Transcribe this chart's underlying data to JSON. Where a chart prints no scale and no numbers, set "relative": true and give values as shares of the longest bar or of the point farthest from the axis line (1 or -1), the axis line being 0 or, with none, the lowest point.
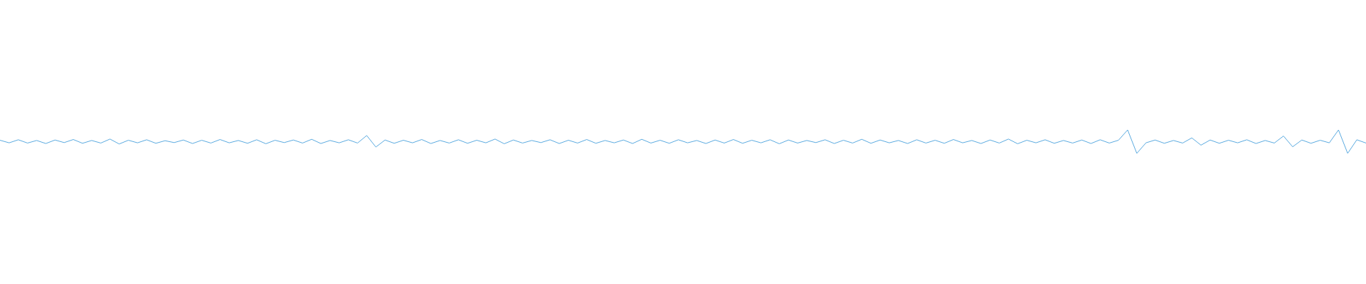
{
  "chart_data": {
    "type": "line",
    "relative": true,
    "color": "#5aaae0",
    "categories": [
      null,
      null,
      null,
      null,
      null,
      null,
      null,
      null,
      null,
      null,
      null,
      null,
      null,
      null,
      null,
      null,
      null,
      null,
      null,
      null,
      null,
      null,
      null,
      null,
      null,
      null,
      null,
      null,
      null,
      null,
      null,
      null,
      null,
      null,
      null,
      null,
      null,
      null,
      null,
      null,
      null,
      null,
      null,
      null,
      null,
      null,
      null,
      null,
      null,
      null,
      null,
      null,
      null,
      null,
      null,
      null,
      null,
      null,
      null,
      null,
      null,
      null,
      null,
      null,
      null,
      null,
      null,
      null,
      null,
      null,
      null,
      null,
      null,
      null,
      null,
      null,
      null,
      null,
      null,
      null,
      null,
      null,
      null,
      null,
      null,
      null,
      null,
      null,
      null,
      null,
      null,
      null,
      null,
      null,
      null,
      null,
      null,
      null,
      null,
      null,
      null,
      null,
      null,
      null,
      null,
      null,
      null,
      null,
      null,
      null,
      null,
      null,
      null,
      null,
      null,
      null,
      null,
      null,
      null,
      null,
      null,
      null,
      null,
      null,
      null,
      null,
      null,
      null,
      null,
      null,
      null,
      null,
      null,
      null,
      null,
      null,
      null,
      null,
      null,
      null,
      null,
      null,
      null,
      null,
      null,
      null,
      null,
      null,
      null,
      null
    ],
    "values": [
      0.56,
      0.45,
      0.58,
      0.44,
      0.55,
      0.42,
      0.57,
      0.46,
      0.59,
      0.43,
      0.55,
      0.44,
      0.61,
      0.4,
      0.56,
      0.45,
      0.58,
      0.43,
      0.54,
      0.46,
      0.57,
      0.42,
      0.56,
      0.44,
      0.59,
      0.45,
      0.55,
      0.43,
      0.58,
      0.41,
      0.56,
      0.46,
      0.57,
      0.44,
      0.6,
      0.42,
      0.55,
      0.45,
      0.58,
      0.44,
      0.76,
      0.27,
      0.57,
      0.43,
      0.56,
      0.45,
      0.59,
      0.42,
      0.55,
      0.44,
      0.58,
      0.43,
      0.56,
      0.45,
      0.61,
      0.41,
      0.57,
      0.44,
      0.55,
      0.46,
      0.58,
      0.42,
      0.56,
      0.44,
      0.59,
      0.43,
      0.55,
      0.45,
      0.57,
      0.42,
      0.6,
      0.44,
      0.56,
      0.43,
      0.58,
      0.45,
      0.55,
      0.42,
      0.57,
      0.44,
      0.59,
      0.43,
      0.56,
      0.45,
      0.58,
      0.41,
      0.57,
      0.44,
      0.55,
      0.46,
      0.58,
      0.42,
      0.56,
      0.44,
      0.6,
      0.43,
      0.57,
      0.45,
      0.55,
      0.42,
      0.58,
      0.44,
      0.56,
      0.43,
      0.59,
      0.45,
      0.55,
      0.42,
      0.57,
      0.44,
      0.61,
      0.41,
      0.56,
      0.45,
      0.58,
      0.43,
      0.55,
      0.44,
      0.57,
      0.42,
      0.58,
      0.44,
      0.56,
      1.0,
      0.0,
      0.45,
      0.57,
      0.43,
      0.55,
      0.44,
      0.66,
      0.35,
      0.57,
      0.43,
      0.56,
      0.45,
      0.58,
      0.42,
      0.55,
      0.44,
      0.74,
      0.28,
      0.57,
      0.43,
      0.56,
      0.45,
      1.0,
      0.0,
      0.58,
      0.44
    ]
  }
}
